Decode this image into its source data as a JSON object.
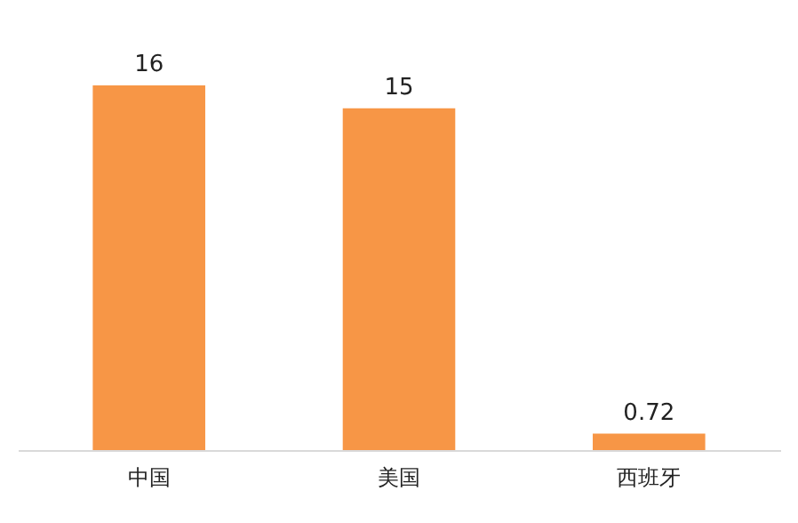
{
  "chart_data": {
    "type": "bar",
    "categories": [
      "中国",
      "美国",
      "西班牙"
    ],
    "values": [
      16,
      15,
      0.72
    ],
    "color": "#f79646",
    "data_labels": true
  }
}
